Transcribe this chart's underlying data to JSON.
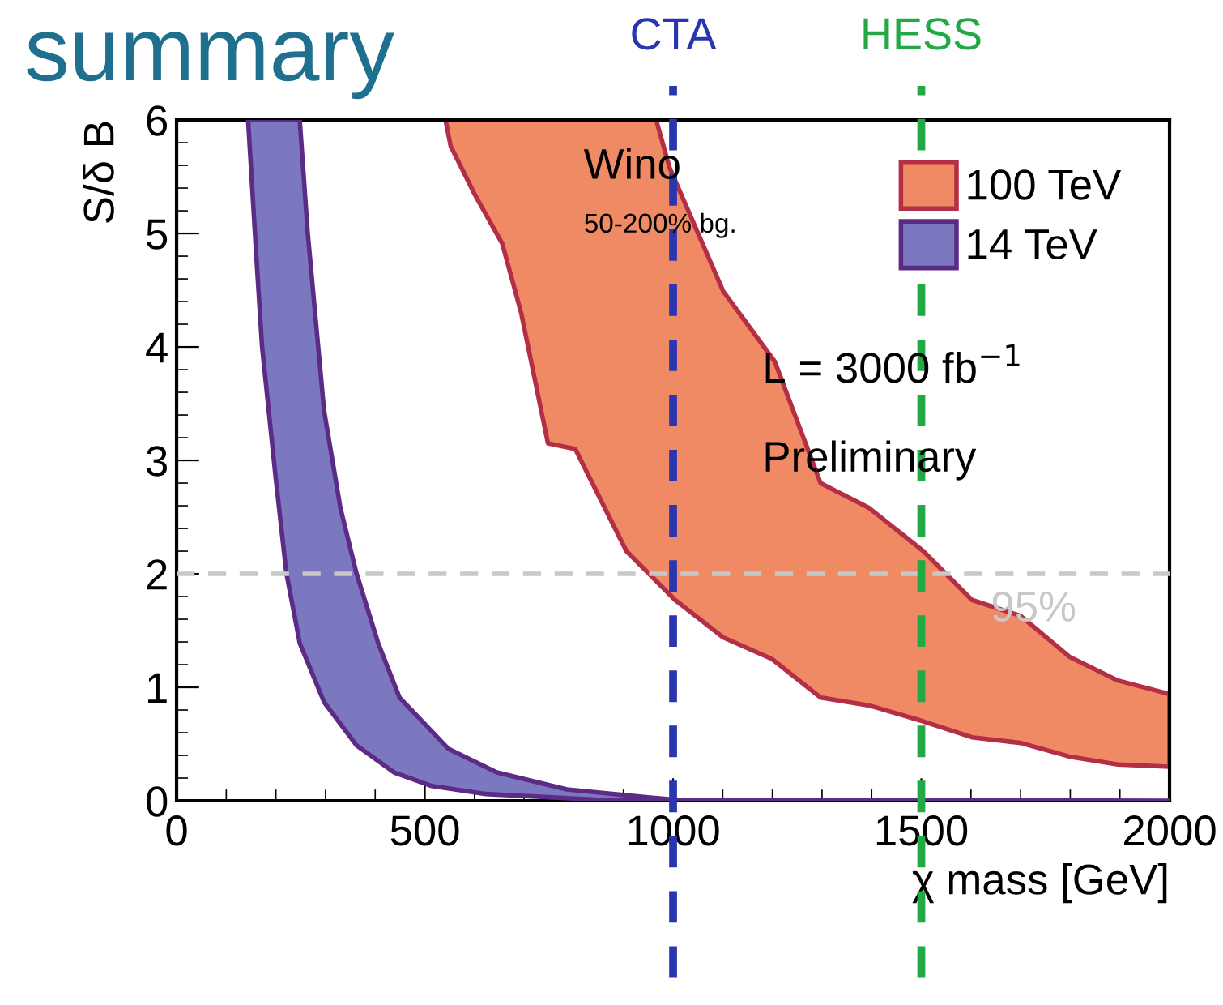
{
  "chart_data": {
    "type": "area",
    "title": "summary",
    "xlabel": "χ mass [GeV]",
    "ylabel": "S/δ B",
    "xlim": [
      0,
      2000
    ],
    "ylim": [
      0,
      6
    ],
    "xticks": [
      0,
      500,
      1000,
      1500,
      2000
    ],
    "yticks": [
      0,
      1,
      2,
      3,
      4,
      5,
      6
    ],
    "grid": false,
    "legend": "top right",
    "series": [
      {
        "name": "100 TeV",
        "color": "#f08a64",
        "x": [
          541.6,
          552,
          601,
          656,
          694,
          748,
          803,
          906,
          1004,
          1101,
          1199,
          1297,
          1395,
          1504,
          1602,
          1700,
          1798,
          1896,
          2000,
          2000,
          1896,
          1798,
          1700,
          1602,
          1504,
          1395,
          1297,
          1205,
          1101,
          993,
          966
        ],
        "values": [
          6.0,
          5.77,
          5.34,
          4.91,
          4.3,
          3.15,
          3.1,
          2.2,
          1.77,
          1.44,
          1.25,
          0.91,
          0.84,
          0.7,
          0.56,
          0.51,
          0.39,
          0.32,
          0.3,
          0.94,
          1.06,
          1.27,
          1.63,
          1.77,
          2.2,
          2.58,
          2.8,
          3.87,
          4.49,
          5.58,
          6.0
        ]
      },
      {
        "name": "14 TeV",
        "color": "#7b78c0",
        "x": [
          144,
          161,
          172,
          199,
          221,
          248,
          297,
          362,
          438,
          514,
          623,
          841,
          1000,
          2000,
          1000,
          949,
          786,
          645,
          547,
          449,
          406,
          362,
          330,
          297,
          264,
          248
        ],
        "values": [
          6.0,
          4.77,
          4.01,
          2.87,
          2.01,
          1.39,
          0.87,
          0.49,
          0.25,
          0.13,
          0.06,
          0.01,
          0,
          0,
          0.01,
          0.03,
          0.1,
          0.25,
          0.46,
          0.91,
          1.39,
          2.01,
          2.58,
          3.44,
          5.01,
          6.0
        ]
      }
    ],
    "ref_lines": [
      {
        "axis": "x",
        "value": 1000,
        "label": "CTA",
        "color": "#2a35b0",
        "line_style": "dashed"
      },
      {
        "axis": "x",
        "value": 1500,
        "label": "HESS",
        "color": "#22a844",
        "line_style": "dashed"
      },
      {
        "axis": "y",
        "value": 2,
        "color": "#c8c8c8",
        "line_style": "dashed"
      }
    ],
    "annotations": [
      "Wino",
      "50-200% bg.",
      "L = 3000 fb$^{−1}$",
      "Preliminary",
      "95%"
    ]
  }
}
